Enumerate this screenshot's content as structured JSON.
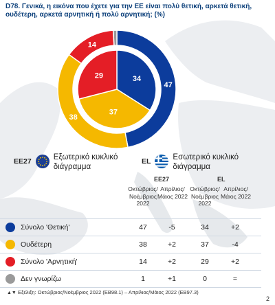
{
  "title": "D78. Γενικά, η εικόνα που έχετε για την ΕΕ είναι πολύ θετική, αρκετά θετική, ουδέτερη, αρκετά αρνητική ή πολύ αρνητική; (%)",
  "legend": {
    "outer": {
      "code": "EE27",
      "label": "Εξωτερικό κυκλικό διάγραμμα",
      "icon": "eu-flag-icon"
    },
    "inner": {
      "code": "EL",
      "label": "Εσωτερικό κυκλικό διάγραμμα",
      "icon": "greece-flag-icon"
    }
  },
  "table": {
    "groups": [
      "ΕΕ27",
      "EL"
    ],
    "columns": [
      "Οκτώβριος/Νοέμβριος 2022",
      "Απρίλιος/Μάιος 2022",
      "Οκτώβριος/Νοέμβριος 2022",
      "Απρίλιος/Μάιος 2022"
    ],
    "rows": [
      {
        "label": "Σύνολο 'Θετική'",
        "color": "#0c3c9c",
        "values": [
          "47",
          "-5",
          "34",
          "+2"
        ]
      },
      {
        "label": "Ουδέτερη",
        "color": "#f5b800",
        "values": [
          "38",
          "+2",
          "37",
          "-4"
        ]
      },
      {
        "label": "Σύνολο 'Αρνητική'",
        "color": "#e41e26",
        "values": [
          "14",
          "+2",
          "29",
          "+2"
        ]
      },
      {
        "label": "Δεν γνωρίζω",
        "color": "#9a9a9a",
        "values": [
          "1",
          "+1",
          "0",
          "="
        ]
      }
    ]
  },
  "footnote": "Εξέλιξη: Οκτώβριος/Νοέμβριος 2022 (EB98.1) – Απρίλιος/Μάιος 2022 (EB97.3)",
  "footnote_marks": "▲▼",
  "page_number": "2",
  "chart_data": {
    "type": "pie",
    "variant": "double-donut",
    "categories": [
      "Σύνολο 'Θετική'",
      "Ουδέτερη",
      "Σύνολο 'Αρνητική'",
      "Δεν γνωρίζω"
    ],
    "colors": [
      "#0c3c9c",
      "#f5b800",
      "#e41e26",
      "#9a9a9a"
    ],
    "series": [
      {
        "name": "EE27",
        "ring": "outer",
        "values": [
          47,
          38,
          14,
          1
        ]
      },
      {
        "name": "EL",
        "ring": "inner",
        "values": [
          34,
          37,
          29,
          0
        ]
      }
    ]
  }
}
